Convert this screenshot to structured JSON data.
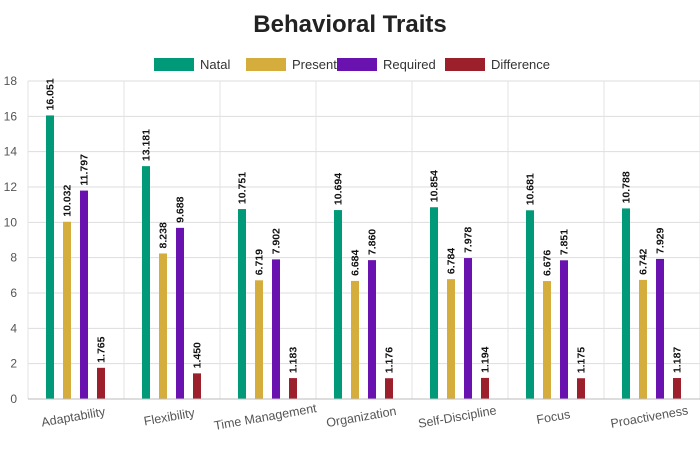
{
  "chart_data": {
    "type": "bar",
    "title": "Behavioral Traits",
    "xlabel": "",
    "ylabel": "",
    "ylim": [
      0,
      18
    ],
    "yticks": [
      0,
      2,
      4,
      6,
      8,
      10,
      12,
      14,
      16,
      18
    ],
    "grid": true,
    "legend_position": "top-center",
    "categories": [
      "Adaptability",
      "Flexibility",
      "Time Management",
      "Organization",
      "Self-Discipline",
      "Focus",
      "Proactiveness"
    ],
    "series": [
      {
        "name": "Natal",
        "color": "#009a78",
        "values": [
          16.051,
          13.181,
          10.751,
          10.694,
          10.854,
          10.681,
          10.788
        ],
        "labels": [
          "16.051",
          "13.181",
          "10.751",
          "10.694",
          "10.854",
          "10.681",
          "10.788"
        ]
      },
      {
        "name": "Present",
        "color": "#d4ad3c",
        "values": [
          10.032,
          8.238,
          6.719,
          6.684,
          6.784,
          6.676,
          6.742
        ],
        "labels": [
          "10.032",
          "8.238",
          "6.719",
          "6.684",
          "6.784",
          "6.676",
          "6.742"
        ]
      },
      {
        "name": "Required",
        "color": "#6a12b0",
        "values": [
          11.797,
          9.688,
          7.902,
          7.86,
          7.978,
          7.851,
          7.929
        ],
        "labels": [
          "11.797",
          "9.688",
          "7.902",
          "7.860",
          "7.978",
          "7.851",
          "7.929"
        ]
      },
      {
        "name": "Difference",
        "color": "#9c1f2c",
        "values": [
          1.765,
          1.45,
          1.183,
          1.176,
          1.194,
          1.175,
          1.187
        ],
        "labels": [
          "1.765",
          "1.450",
          "1.183",
          "1.176",
          "1.194",
          "1.175",
          "1.187"
        ]
      }
    ]
  }
}
